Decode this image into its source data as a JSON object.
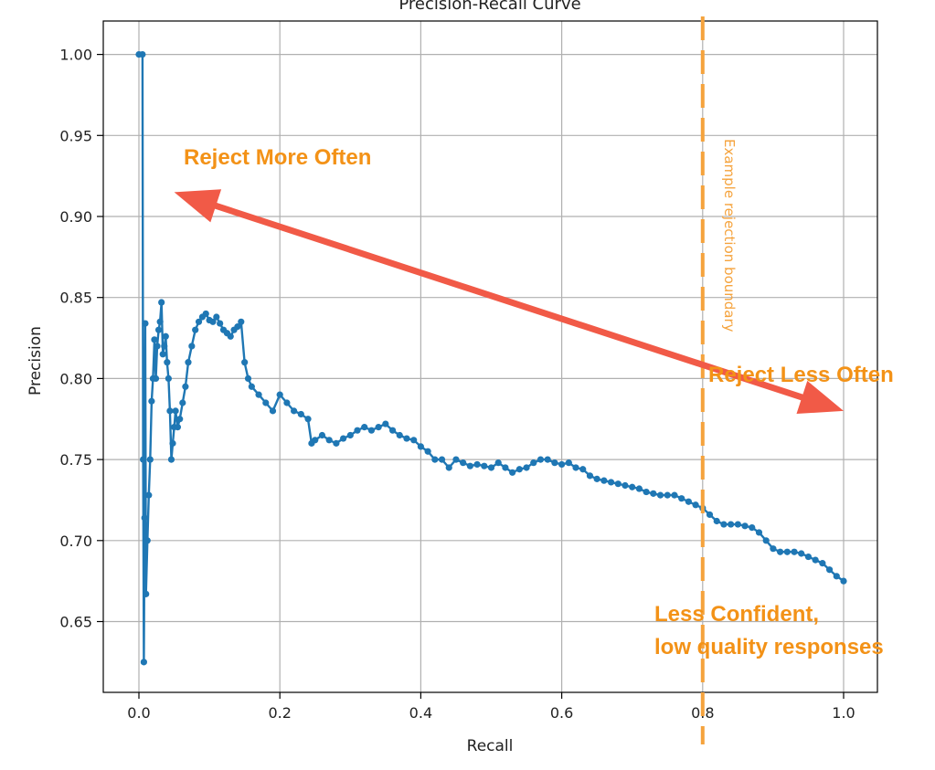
{
  "chart_data": {
    "type": "line",
    "title": "Precision-Recall Curve",
    "xlabel": "Recall",
    "ylabel": "Precision",
    "xlim": [
      -0.05,
      1.05
    ],
    "ylim": [
      0.61,
      1.02
    ],
    "grid": true,
    "x_ticks": [
      0.0,
      0.2,
      0.4,
      0.6,
      0.8,
      1.0
    ],
    "x_tick_labels": [
      "0.0",
      "0.2",
      "0.4",
      "0.6",
      "0.8",
      "1.0"
    ],
    "y_ticks": [
      0.65,
      0.7,
      0.75,
      0.8,
      0.85,
      0.9,
      0.95,
      1.0
    ],
    "y_tick_labels": [
      "0.65",
      "0.70",
      "0.75",
      "0.80",
      "0.85",
      "0.90",
      "0.95",
      "1.00"
    ],
    "series": [
      {
        "name": "Precision-Recall",
        "color": "#1f77b4",
        "marker": "circle",
        "x": [
          0.0,
          0.005,
          0.006,
          0.007,
          0.008,
          0.009,
          0.01,
          0.012,
          0.014,
          0.016,
          0.018,
          0.02,
          0.022,
          0.024,
          0.026,
          0.028,
          0.03,
          0.032,
          0.034,
          0.036,
          0.038,
          0.04,
          0.042,
          0.044,
          0.046,
          0.048,
          0.05,
          0.052,
          0.055,
          0.058,
          0.062,
          0.066,
          0.07,
          0.075,
          0.08,
          0.085,
          0.09,
          0.095,
          0.1,
          0.105,
          0.11,
          0.115,
          0.12,
          0.125,
          0.13,
          0.135,
          0.14,
          0.145,
          0.15,
          0.155,
          0.16,
          0.17,
          0.18,
          0.19,
          0.2,
          0.21,
          0.22,
          0.23,
          0.24,
          0.245,
          0.25,
          0.26,
          0.27,
          0.28,
          0.29,
          0.3,
          0.31,
          0.32,
          0.33,
          0.34,
          0.35,
          0.36,
          0.37,
          0.38,
          0.39,
          0.4,
          0.41,
          0.42,
          0.43,
          0.44,
          0.45,
          0.46,
          0.47,
          0.48,
          0.49,
          0.5,
          0.51,
          0.52,
          0.53,
          0.54,
          0.55,
          0.56,
          0.57,
          0.58,
          0.59,
          0.6,
          0.61,
          0.62,
          0.63,
          0.64,
          0.65,
          0.66,
          0.67,
          0.68,
          0.69,
          0.7,
          0.71,
          0.72,
          0.73,
          0.74,
          0.75,
          0.76,
          0.77,
          0.78,
          0.79,
          0.8,
          0.81,
          0.82,
          0.83,
          0.84,
          0.85,
          0.86,
          0.87,
          0.88,
          0.89,
          0.9,
          0.91,
          0.92,
          0.93,
          0.94,
          0.95,
          0.96,
          0.97,
          0.98,
          0.99,
          1.0
        ],
        "values": [
          1.0,
          1.0,
          0.75,
          0.625,
          0.714,
          0.834,
          0.667,
          0.7,
          0.728,
          0.75,
          0.786,
          0.8,
          0.824,
          0.8,
          0.82,
          0.83,
          0.835,
          0.847,
          0.815,
          0.82,
          0.826,
          0.81,
          0.8,
          0.78,
          0.75,
          0.76,
          0.77,
          0.78,
          0.77,
          0.775,
          0.785,
          0.795,
          0.81,
          0.82,
          0.83,
          0.835,
          0.838,
          0.84,
          0.836,
          0.835,
          0.838,
          0.834,
          0.83,
          0.828,
          0.826,
          0.83,
          0.832,
          0.835,
          0.81,
          0.8,
          0.795,
          0.79,
          0.785,
          0.78,
          0.79,
          0.785,
          0.78,
          0.778,
          0.775,
          0.76,
          0.762,
          0.765,
          0.762,
          0.76,
          0.763,
          0.765,
          0.768,
          0.77,
          0.768,
          0.77,
          0.772,
          0.768,
          0.765,
          0.763,
          0.762,
          0.758,
          0.755,
          0.75,
          0.75,
          0.745,
          0.75,
          0.748,
          0.746,
          0.747,
          0.746,
          0.745,
          0.748,
          0.745,
          0.742,
          0.744,
          0.745,
          0.748,
          0.75,
          0.75,
          0.748,
          0.747,
          0.748,
          0.745,
          0.744,
          0.74,
          0.738,
          0.737,
          0.736,
          0.735,
          0.734,
          0.733,
          0.732,
          0.73,
          0.729,
          0.728,
          0.728,
          0.728,
          0.726,
          0.724,
          0.722,
          0.72,
          0.716,
          0.712,
          0.71,
          0.71,
          0.71,
          0.709,
          0.708,
          0.705,
          0.7,
          0.695,
          0.693,
          0.693,
          0.693,
          0.692,
          0.69,
          0.688,
          0.686,
          0.682,
          0.678,
          0.675
        ]
      }
    ],
    "annotations": {
      "reject_more": "Reject More Often",
      "reject_less": "Reject Less Often",
      "less_confident_line1": "Less Confident,",
      "less_confident_line2": "low quality responses",
      "boundary_label": "Example rejection boundary",
      "boundary_recall": 0.8,
      "arrow_start": [
        0.05,
        0.915
      ],
      "arrow_end": [
        1.0,
        0.78
      ]
    },
    "colors": {
      "series": "#1f77b4",
      "arrow": "#f15a47",
      "boundary": "#f5a33d",
      "annotation": "#f39217",
      "grid": "#b0b0b0"
    }
  }
}
